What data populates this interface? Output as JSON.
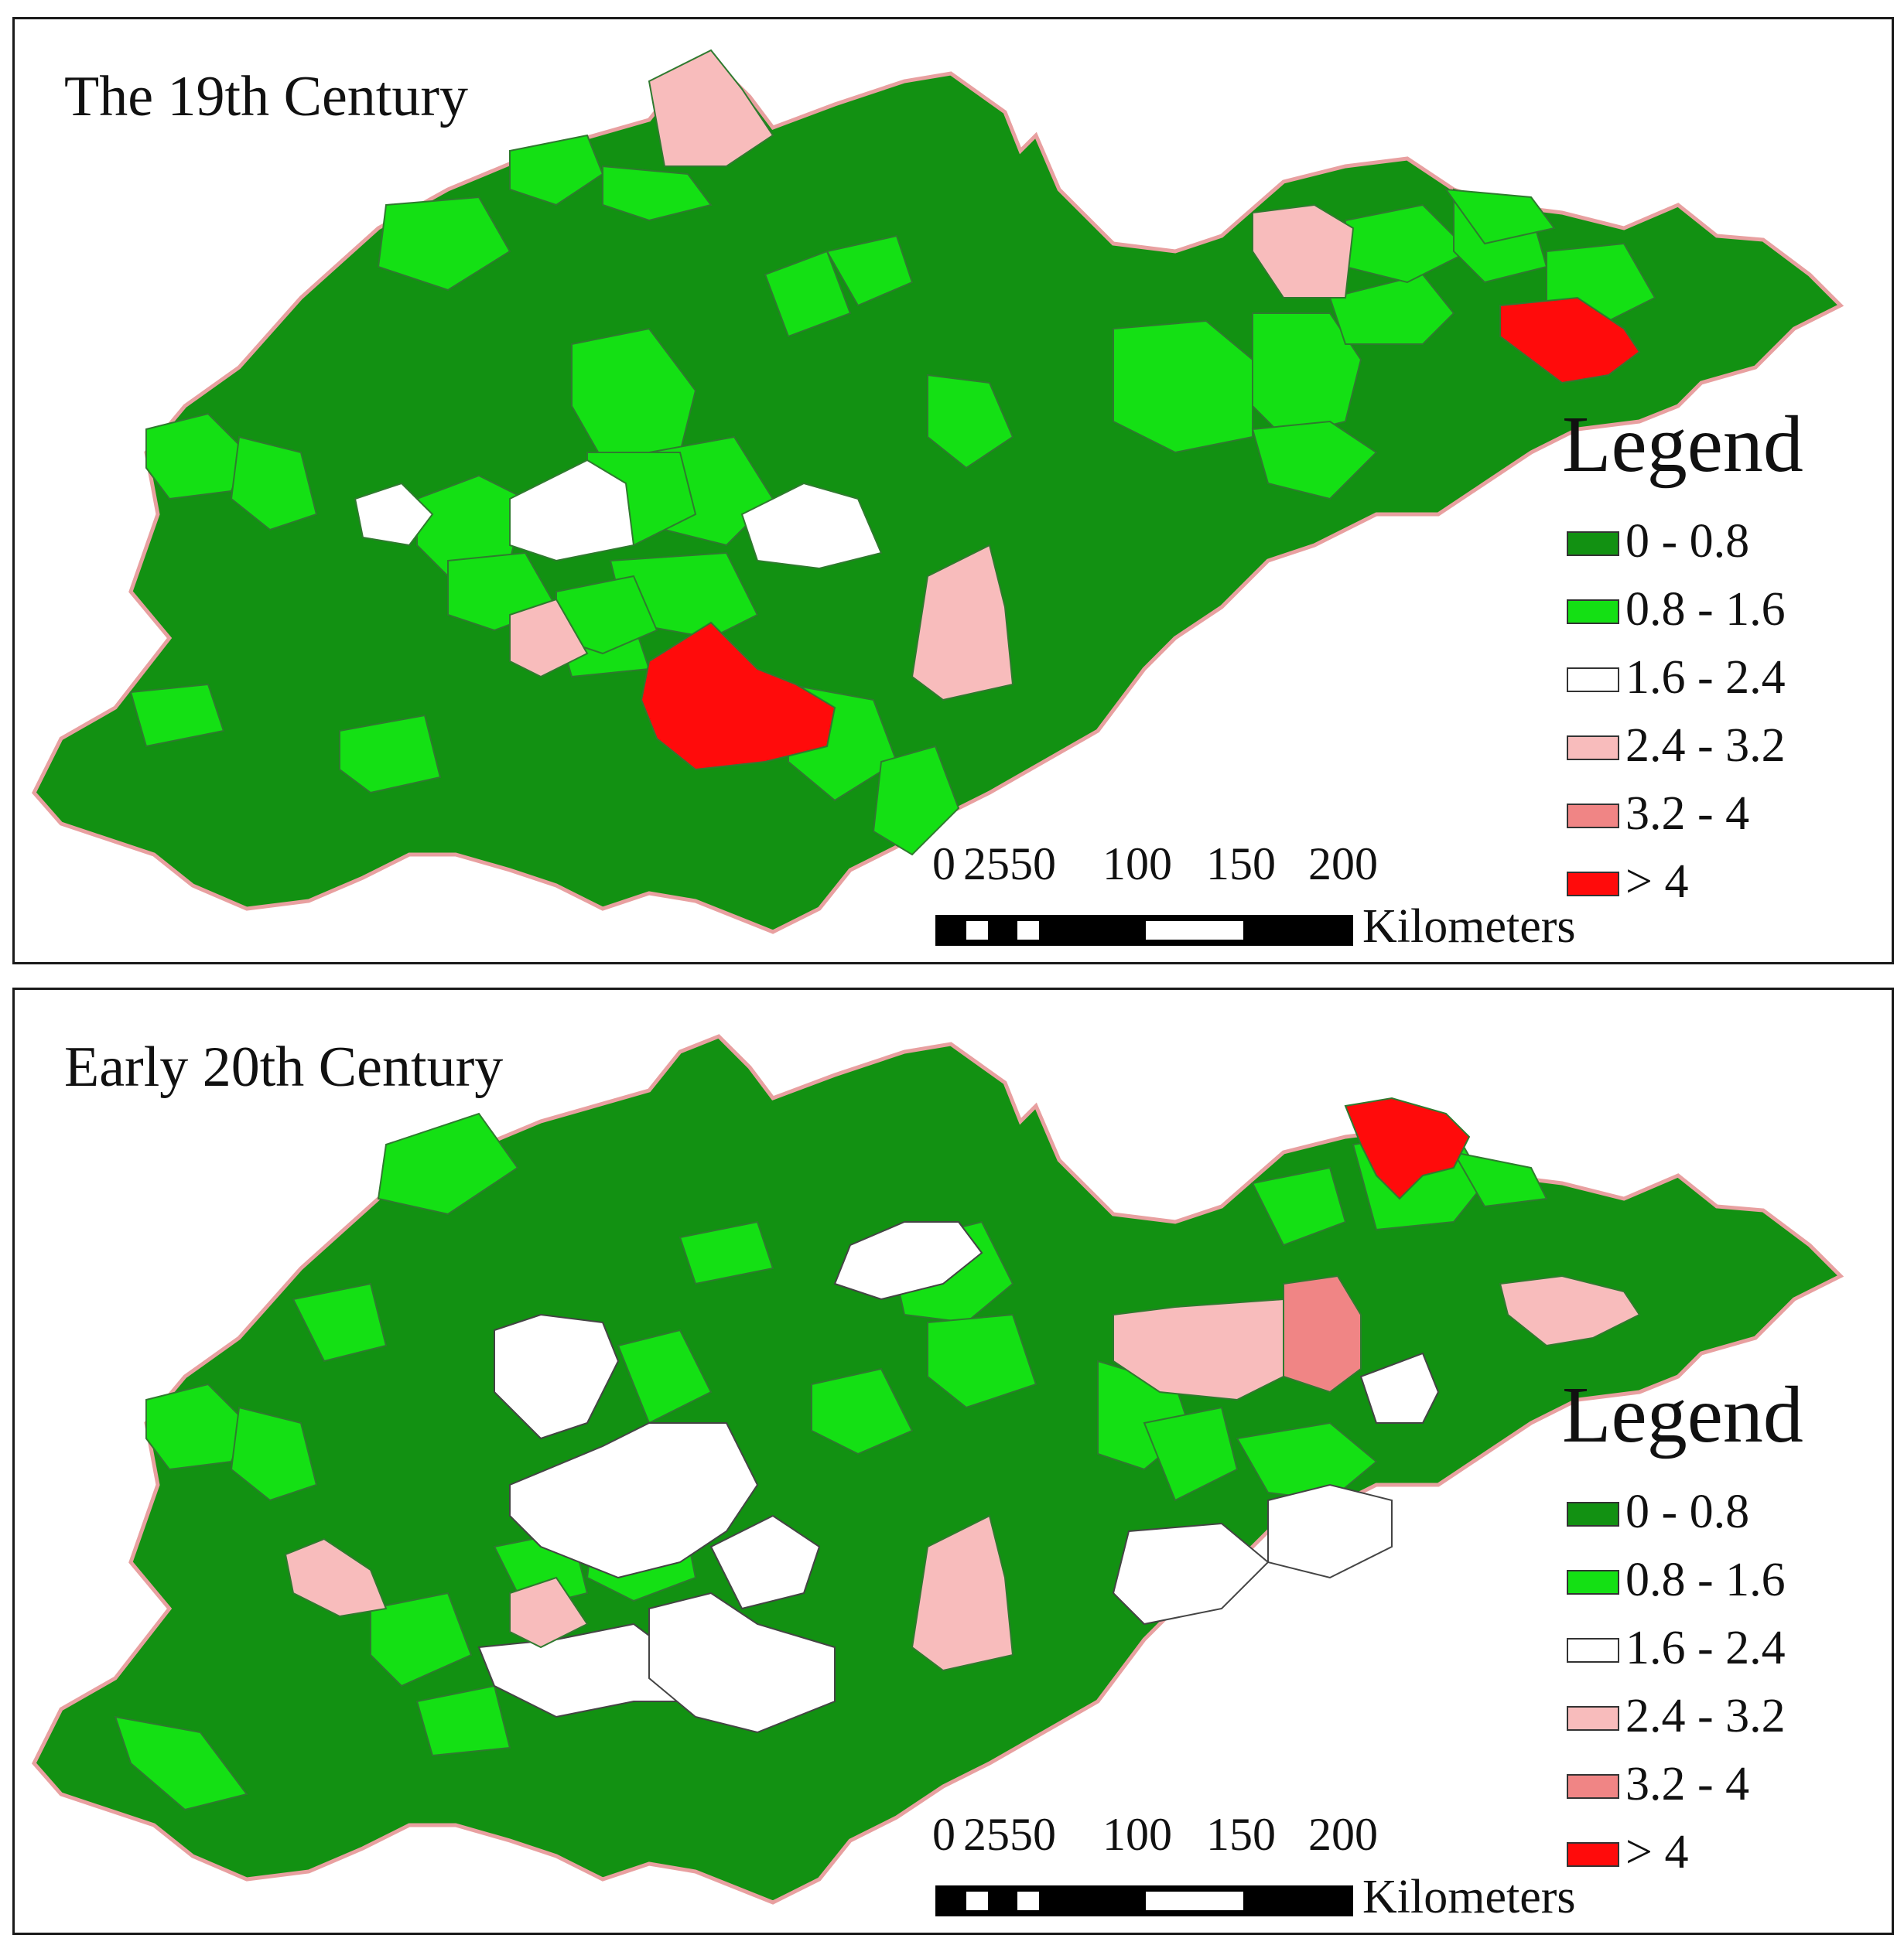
{
  "panels": [
    {
      "title": "The 19th Century",
      "legend_title": "Legend",
      "scale": {
        "ticks": [
          "0",
          "25",
          "50",
          "100",
          "150",
          "200"
        ],
        "unit": "Kilometers"
      }
    },
    {
      "title": "Early 20th Century",
      "legend_title": "Legend",
      "scale": {
        "ticks": [
          "0",
          "25",
          "50",
          "100",
          "150",
          "200"
        ],
        "unit": "Kilometers"
      }
    }
  ],
  "legend": [
    {
      "label": "0 - 0.8",
      "color": "#129112"
    },
    {
      "label": "0.8 - 1.6",
      "color": "#14e014"
    },
    {
      "label": "1.6 - 2.4",
      "color": "#ffffff"
    },
    {
      "label": "2.4 - 3.2",
      "color": "#f8bcbc"
    },
    {
      "label": "3.2 - 4",
      "color": "#f08585"
    },
    {
      "label": "> 4",
      "color": "#ff0b0b"
    }
  ],
  "colors": {
    "border": "#e8a0a0",
    "district_line": "#2f7a2f",
    "frame": "#1a1a1a"
  }
}
